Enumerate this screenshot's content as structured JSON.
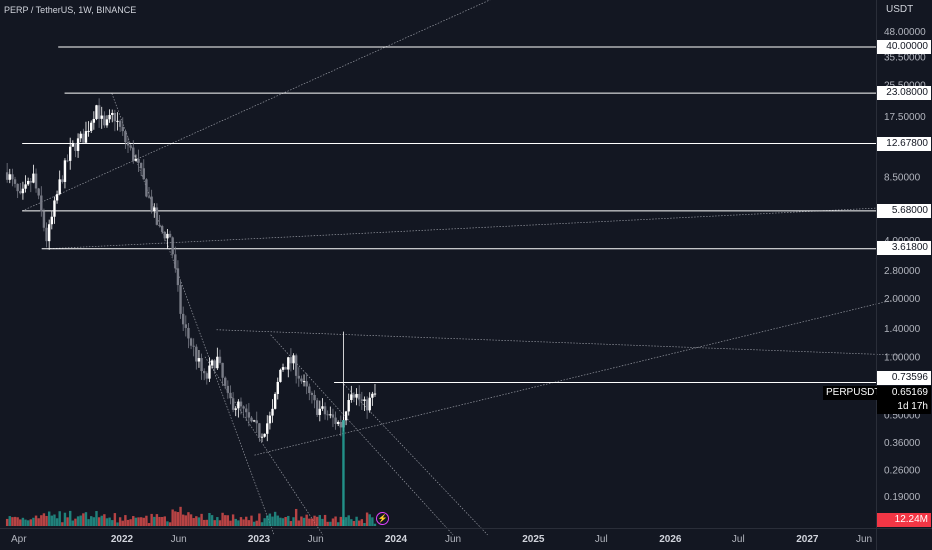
{
  "header": {
    "symbol_title": "PERP / TetherUS, 1W, BINANCE"
  },
  "price_axis": {
    "currency": "USDT",
    "level_labels": [
      "40.00000",
      "23.08000",
      "12.67800",
      "5.68000",
      "3.61800",
      "0.73596"
    ],
    "last_price": "0.65169",
    "ticker": "PERPUSDT",
    "countdown": "1d 17h",
    "volume_label": "12.24M"
  },
  "flash_icon": "⚡",
  "colors": {
    "up": "#ffffff",
    "down": "#787b86",
    "volume_up": "#26a69a",
    "volume_down": "#ef5350",
    "level_line": "#ffffff",
    "accent": "#e040fb"
  },
  "chart_data": {
    "type": "candlestick",
    "symbol": "PERPUSDT",
    "interval": "1W",
    "scale": "log",
    "y_ticks": [
      48,
      35.5,
      25.5,
      17.5,
      8.5,
      4,
      2.8,
      2,
      1.4,
      1,
      0.5,
      0.36,
      0.26,
      0.19
    ],
    "y_tick_labels": [
      "48.00000",
      "35.50000",
      "25.50000",
      "17.50000",
      "8.50000",
      "4.00000",
      "2.80000",
      "2.00000",
      "1.40000",
      "1.00000",
      "0.50000",
      "0.36000",
      "0.26000",
      "0.19000"
    ],
    "x_ticks": [
      {
        "date": "2021-04-01",
        "label": "Apr",
        "year": false
      },
      {
        "date": "2022-01-01",
        "label": "2022",
        "year": true
      },
      {
        "date": "2022-06-01",
        "label": "Jun",
        "year": false
      },
      {
        "date": "2023-01-01",
        "label": "2023",
        "year": true
      },
      {
        "date": "2023-06-01",
        "label": "Jun",
        "year": false
      },
      {
        "date": "2024-01-01",
        "label": "2024",
        "year": true
      },
      {
        "date": "2024-06-01",
        "label": "Jun",
        "year": false
      },
      {
        "date": "2025-01-01",
        "label": "2025",
        "year": true
      },
      {
        "date": "2025-07-01",
        "label": "Jul",
        "year": false
      },
      {
        "date": "2026-01-01",
        "label": "2026",
        "year": true
      },
      {
        "date": "2026-07-01",
        "label": "Jul",
        "year": false
      },
      {
        "date": "2027-01-01",
        "label": "2027",
        "year": true
      },
      {
        "date": "2027-06-01",
        "label": "Jun",
        "year": false
      }
    ],
    "horizontal_levels": [
      {
        "value": 40.0,
        "from": "2021-07-15"
      },
      {
        "value": 23.08,
        "from": "2021-08-01"
      },
      {
        "value": 12.678,
        "from": "2021-04-10"
      },
      {
        "value": 5.68,
        "from": "2021-04-10"
      },
      {
        "value": 3.618,
        "from": "2021-06-01"
      },
      {
        "value": 0.73596,
        "from": "2023-07-20"
      }
    ],
    "price_path": [
      [
        "2021-03-01",
        9.0
      ],
      [
        "2021-04-05",
        6.5
      ],
      [
        "2021-05-10",
        8.5
      ],
      [
        "2021-06-15",
        4.0
      ],
      [
        "2021-07-20",
        8.0
      ],
      [
        "2021-08-20",
        12.0
      ],
      [
        "2021-09-25",
        14.0
      ],
      [
        "2021-10-25",
        20.0
      ],
      [
        "2021-11-15",
        15.0
      ],
      [
        "2021-12-10",
        18.0
      ],
      [
        "2022-01-10",
        13.0
      ],
      [
        "2022-02-10",
        10.0
      ],
      [
        "2022-03-10",
        7.0
      ],
      [
        "2022-04-10",
        4.5
      ],
      [
        "2022-05-10",
        4.2
      ],
      [
        "2022-06-10",
        1.5
      ],
      [
        "2022-07-10",
        1.1
      ],
      [
        "2022-08-10",
        0.75
      ],
      [
        "2022-09-10",
        1.0
      ],
      [
        "2022-10-10",
        0.6
      ],
      [
        "2022-11-10",
        0.55
      ],
      [
        "2022-12-10",
        0.45
      ],
      [
        "2023-01-05",
        0.4
      ],
      [
        "2023-02-05",
        0.5
      ],
      [
        "2023-03-01",
        0.9
      ],
      [
        "2023-04-01",
        0.95
      ],
      [
        "2023-05-01",
        0.7
      ],
      [
        "2023-06-01",
        0.55
      ],
      [
        "2023-07-01",
        0.5
      ],
      [
        "2023-08-10",
        0.44
      ],
      [
        "2023-09-01",
        0.7
      ],
      [
        "2023-10-10",
        0.55
      ],
      [
        "2023-11-10",
        0.65
      ]
    ]
  }
}
